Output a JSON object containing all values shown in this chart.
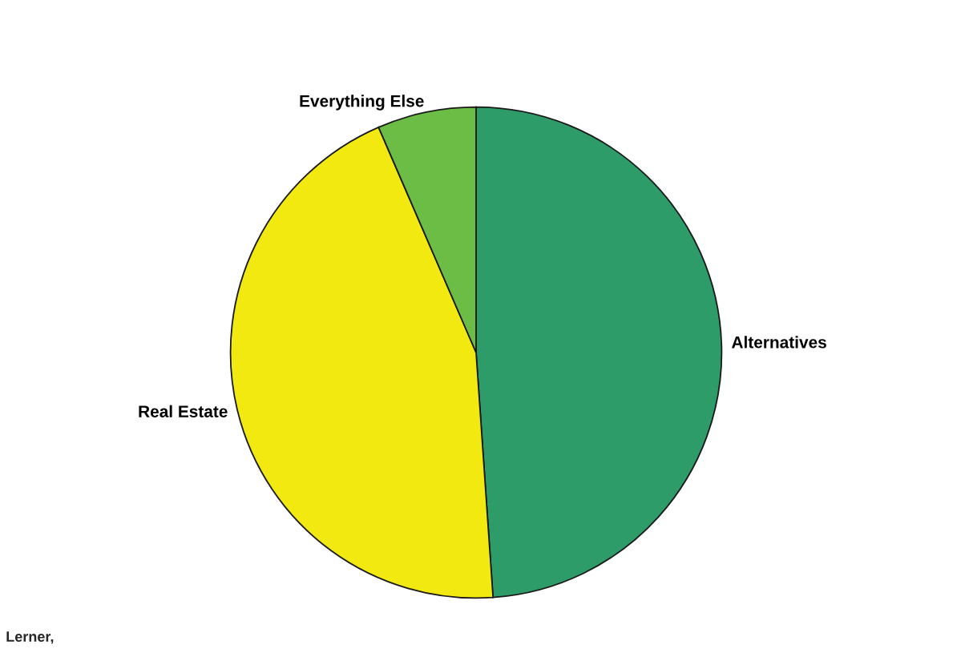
{
  "chart_data": {
    "type": "pie",
    "categories": [
      "Alternatives",
      "Real Estate",
      "Everything Else"
    ],
    "values": [
      48.9,
      44.6,
      6.5
    ],
    "colors": [
      "#2e9c69",
      "#f2e911",
      "#6bbd45"
    ],
    "annotations": [
      "Lerner,"
    ]
  }
}
